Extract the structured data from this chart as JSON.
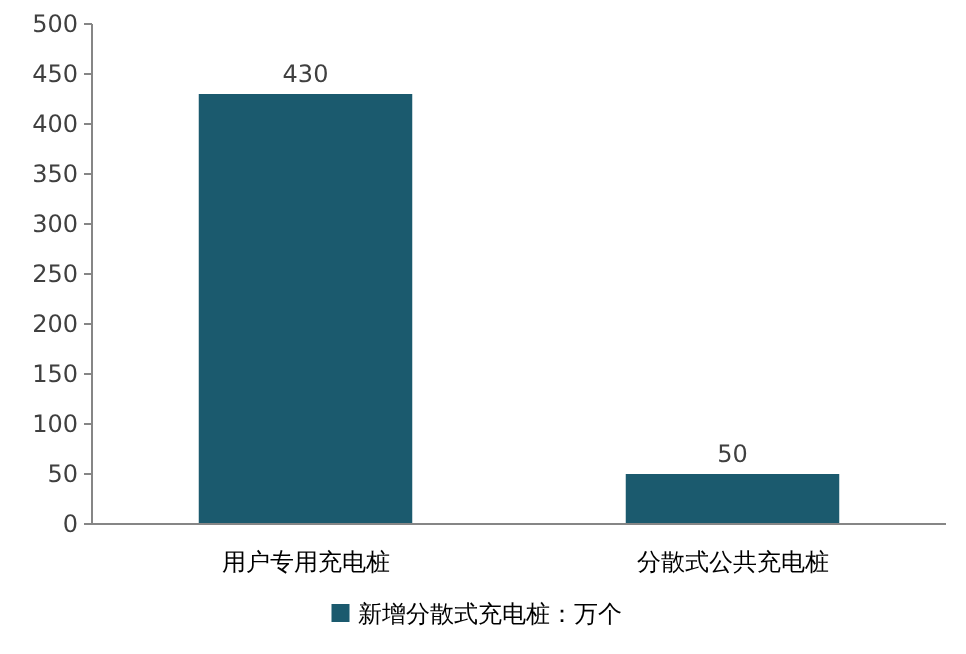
{
  "chart_data": {
    "type": "bar",
    "categories": [
      "用户专用充电桩",
      "分散式公共充电桩"
    ],
    "series": [
      {
        "name": "新增分散式充电桩：万个",
        "color": "#1b5a6e",
        "values": [
          430,
          50
        ]
      }
    ],
    "ylim": [
      0,
      500
    ],
    "yticks": [
      0,
      50,
      100,
      150,
      200,
      250,
      300,
      350,
      400,
      450,
      500
    ],
    "data_labels": true,
    "legend": "bottom"
  }
}
